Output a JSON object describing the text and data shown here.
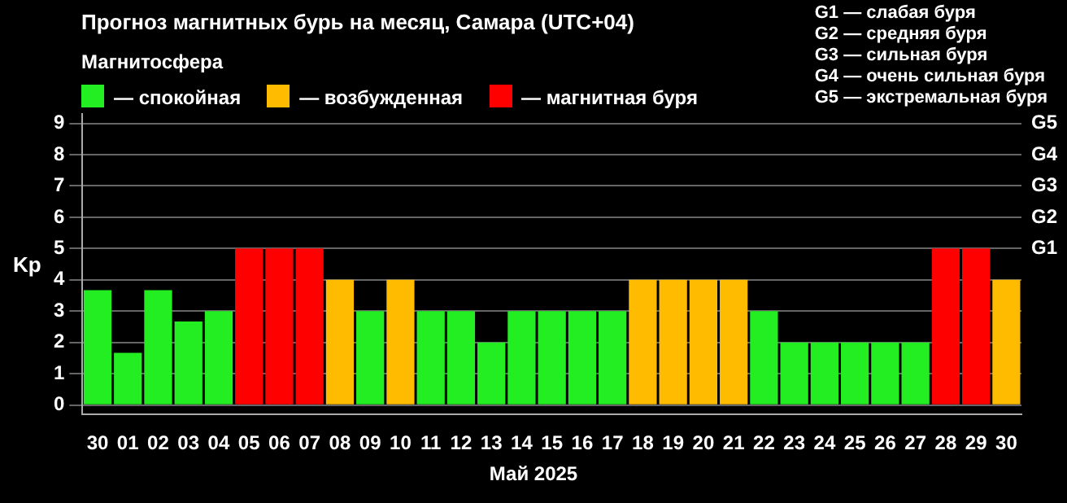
{
  "chart_data": {
    "type": "bar",
    "title": "Прогноз магнитных бурь на месяц, Самара (UTC+04)",
    "xlabel": "Май 2025",
    "ylabel": "Kp",
    "legend_title": "Магнитосфера",
    "legend": "top left",
    "stacked": true,
    "grid": "y",
    "categories": [
      "30",
      "01",
      "02",
      "03",
      "04",
      "05",
      "06",
      "07",
      "08",
      "09",
      "10",
      "11",
      "12",
      "13",
      "14",
      "15",
      "16",
      "17",
      "18",
      "19",
      "20",
      "21",
      "22",
      "23",
      "24",
      "25",
      "26",
      "27",
      "28",
      "29",
      "30"
    ],
    "series": [
      {
        "name": "— спокойная",
        "color": "#22ee22",
        "values": [
          3.67,
          1.67,
          3.67,
          2.67,
          3,
          null,
          null,
          null,
          null,
          3,
          null,
          3,
          3,
          2,
          3,
          3,
          3,
          3,
          null,
          null,
          null,
          null,
          3,
          2,
          2,
          2,
          2,
          2,
          null,
          null,
          null
        ]
      },
      {
        "name": "— возбужденная",
        "color": "#ffbb00",
        "values": [
          null,
          null,
          null,
          null,
          null,
          null,
          null,
          null,
          4,
          null,
          4,
          null,
          null,
          null,
          null,
          null,
          null,
          null,
          4,
          4,
          4,
          4,
          null,
          null,
          null,
          null,
          null,
          null,
          null,
          null,
          4
        ]
      },
      {
        "name": "— магнитная буря",
        "color": "#ff0000",
        "values": [
          null,
          null,
          null,
          null,
          null,
          5,
          5,
          5,
          null,
          null,
          null,
          null,
          null,
          null,
          null,
          null,
          null,
          null,
          null,
          null,
          null,
          null,
          null,
          null,
          null,
          null,
          null,
          null,
          5,
          5,
          null
        ]
      }
    ],
    "ylim": [
      -0.3,
      9.3
    ],
    "yticks": [
      0,
      1,
      2,
      3,
      4,
      5,
      6,
      7,
      8,
      9
    ],
    "annotations": [
      "G1 — слабая буря",
      "G2 — средняя буря",
      "G3 — сильная буря",
      "G4 — очень сильная буря",
      "G5 — экстремальная буря",
      "G5",
      "G4",
      "G3",
      "G2",
      "G1"
    ]
  }
}
